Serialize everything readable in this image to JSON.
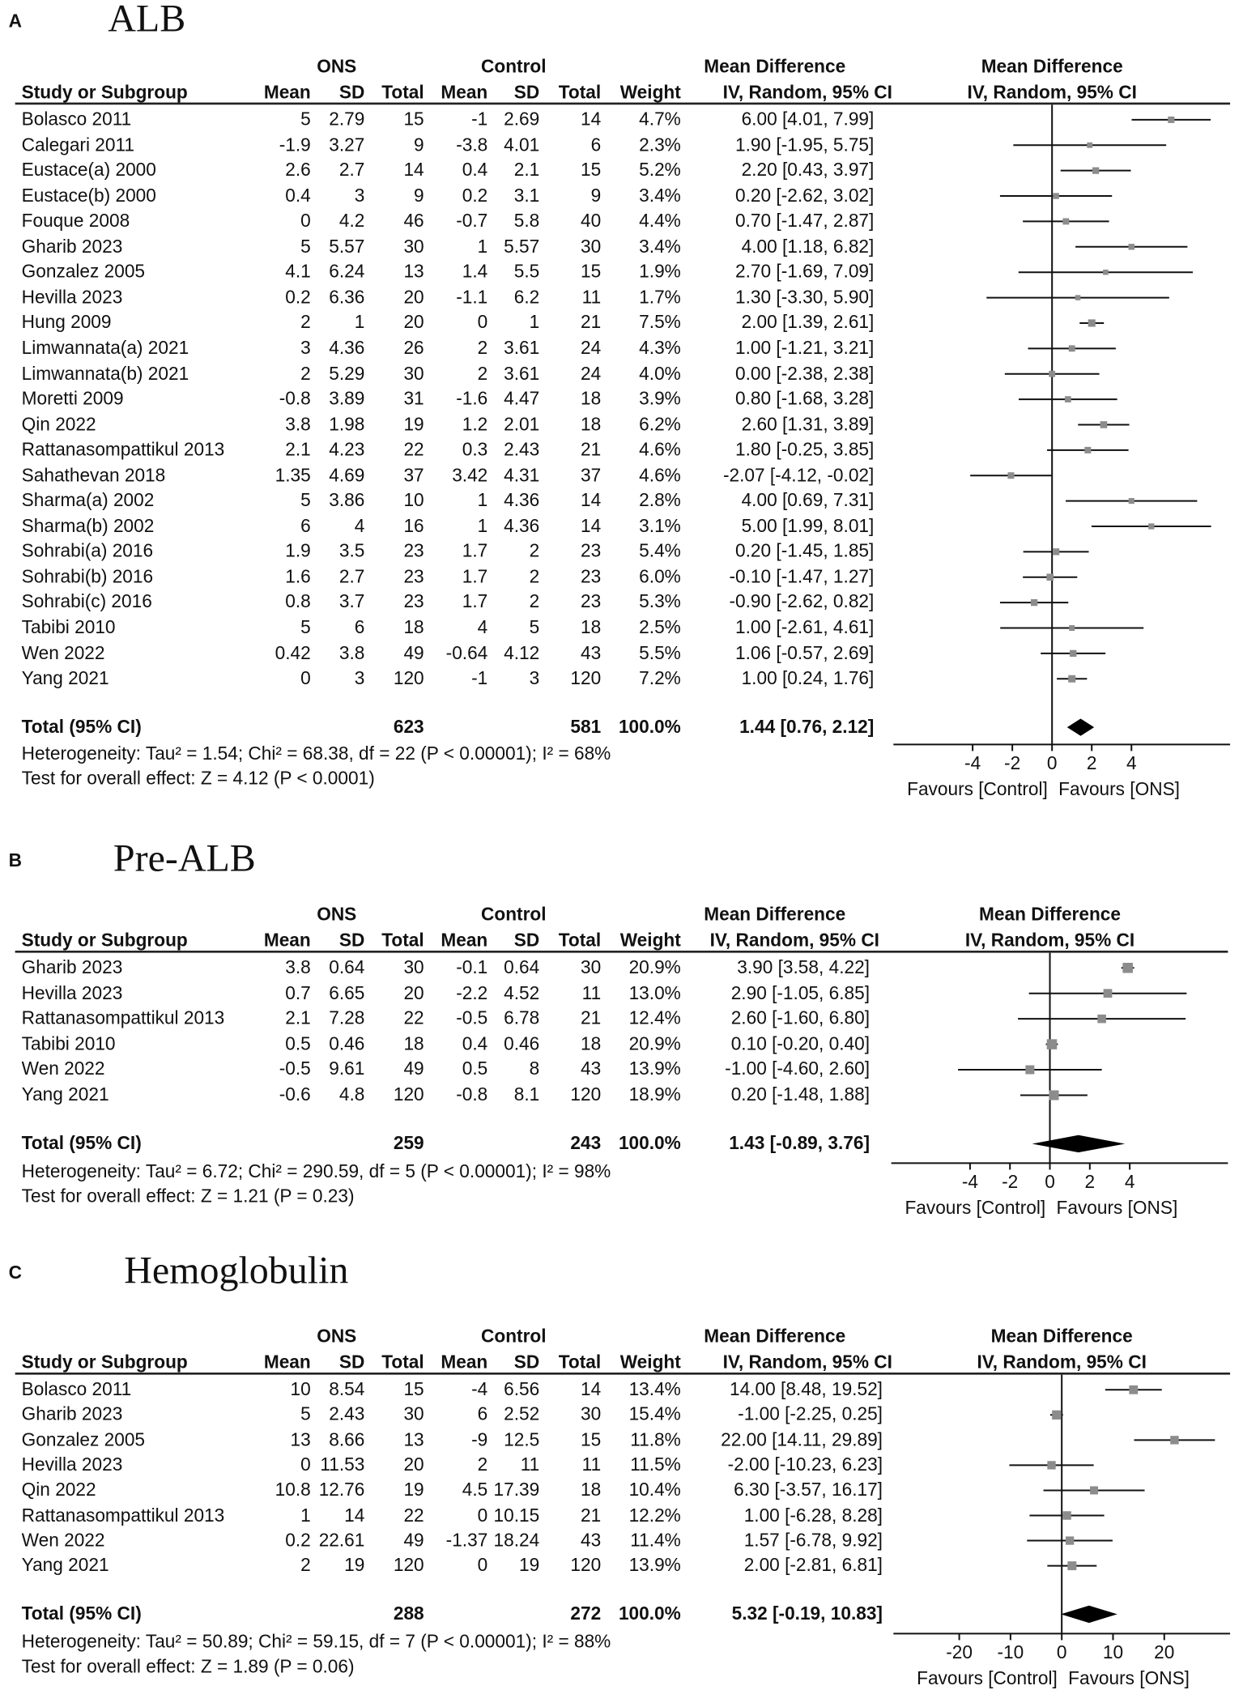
{
  "chart_data": [
    {
      "type": "forest",
      "panel": "A",
      "title": "ALB",
      "group_headers": [
        "ONS",
        "Control",
        "Mean Difference",
        "Mean Difference"
      ],
      "columns": [
        "Study or Subgroup",
        "Mean",
        "SD",
        "Total",
        "Mean",
        "SD",
        "Total",
        "Weight",
        "IV, Random, 95% CI",
        "IV, Random, 95% CI"
      ],
      "rows": [
        [
          "Bolasco 2011",
          "5",
          "2.79",
          "15",
          "-1",
          "2.69",
          "14",
          "4.7%",
          "6.00 [4.01, 7.99]"
        ],
        [
          "Calegari 2011",
          "-1.9",
          "3.27",
          "9",
          "-3.8",
          "4.01",
          "6",
          "2.3%",
          "1.90 [-1.95, 5.75]"
        ],
        [
          "Eustace(a) 2000",
          "2.6",
          "2.7",
          "14",
          "0.4",
          "2.1",
          "15",
          "5.2%",
          "2.20 [0.43, 3.97]"
        ],
        [
          "Eustace(b) 2000",
          "0.4",
          "3",
          "9",
          "0.2",
          "3.1",
          "9",
          "3.4%",
          "0.20 [-2.62, 3.02]"
        ],
        [
          "Fouque 2008",
          "0",
          "4.2",
          "46",
          "-0.7",
          "5.8",
          "40",
          "4.4%",
          "0.70 [-1.47, 2.87]"
        ],
        [
          "Gharib 2023",
          "5",
          "5.57",
          "30",
          "1",
          "5.57",
          "30",
          "3.4%",
          "4.00 [1.18, 6.82]"
        ],
        [
          "Gonzalez 2005",
          "4.1",
          "6.24",
          "13",
          "1.4",
          "5.5",
          "15",
          "1.9%",
          "2.70 [-1.69, 7.09]"
        ],
        [
          "Hevilla 2023",
          "0.2",
          "6.36",
          "20",
          "-1.1",
          "6.2",
          "11",
          "1.7%",
          "1.30 [-3.30, 5.90]"
        ],
        [
          "Hung 2009",
          "2",
          "1",
          "20",
          "0",
          "1",
          "21",
          "7.5%",
          "2.00 [1.39, 2.61]"
        ],
        [
          "Limwannata(a) 2021",
          "3",
          "4.36",
          "26",
          "2",
          "3.61",
          "24",
          "4.3%",
          "1.00 [-1.21, 3.21]"
        ],
        [
          "Limwannata(b) 2021",
          "2",
          "5.29",
          "30",
          "2",
          "3.61",
          "24",
          "4.0%",
          "0.00 [-2.38, 2.38]"
        ],
        [
          "Moretti 2009",
          "-0.8",
          "3.89",
          "31",
          "-1.6",
          "4.47",
          "18",
          "3.9%",
          "0.80 [-1.68, 3.28]"
        ],
        [
          "Qin 2022",
          "3.8",
          "1.98",
          "19",
          "1.2",
          "2.01",
          "18",
          "6.2%",
          "2.60 [1.31, 3.89]"
        ],
        [
          "Rattanasompattikul 2013",
          "2.1",
          "4.23",
          "22",
          "0.3",
          "2.43",
          "21",
          "4.6%",
          "1.80 [-0.25, 3.85]"
        ],
        [
          "Sahathevan 2018",
          "1.35",
          "4.69",
          "37",
          "3.42",
          "4.31",
          "37",
          "4.6%",
          "-2.07 [-4.12, -0.02]"
        ],
        [
          "Sharma(a) 2002",
          "5",
          "3.86",
          "10",
          "1",
          "4.36",
          "14",
          "2.8%",
          "4.00 [0.69, 7.31]"
        ],
        [
          "Sharma(b) 2002",
          "6",
          "4",
          "16",
          "1",
          "4.36",
          "14",
          "3.1%",
          "5.00 [1.99, 8.01]"
        ],
        [
          "Sohrabi(a) 2016",
          "1.9",
          "3.5",
          "23",
          "1.7",
          "2",
          "23",
          "5.4%",
          "0.20 [-1.45, 1.85]"
        ],
        [
          "Sohrabi(b) 2016",
          "1.6",
          "2.7",
          "23",
          "1.7",
          "2",
          "23",
          "6.0%",
          "-0.10 [-1.47, 1.27]"
        ],
        [
          "Sohrabi(c) 2016",
          "0.8",
          "3.7",
          "23",
          "1.7",
          "2",
          "23",
          "5.3%",
          "-0.90 [-2.62, 0.82]"
        ],
        [
          "Tabibi 2010",
          "5",
          "6",
          "18",
          "4",
          "5",
          "18",
          "2.5%",
          "1.00 [-2.61, 4.61]"
        ],
        [
          "Wen 2022",
          "0.42",
          "3.8",
          "49",
          "-0.64",
          "4.12",
          "43",
          "5.5%",
          "1.06 [-0.57, 2.69]"
        ],
        [
          "Yang 2021",
          "0",
          "3",
          "120",
          "-1",
          "3",
          "120",
          "7.2%",
          "1.00 [0.24, 1.76]"
        ]
      ],
      "total": [
        "Total (95% CI)",
        "623",
        "581",
        "100.0%",
        "1.44 [0.76, 2.12]"
      ],
      "heterogeneity": "Heterogeneity: Tau² = 1.54; Chi² = 68.38, df = 22 (P < 0.00001); I² = 68%",
      "overall": "Test for overall effect: Z = 4.12 (P < 0.0001)",
      "ticks": [
        -4,
        -2,
        0,
        2,
        4
      ],
      "favours": [
        "Favours [Control]",
        "Favours [ONS]"
      ]
    },
    {
      "type": "forest",
      "panel": "B",
      "title": "Pre-ALB",
      "group_headers": [
        "ONS",
        "Control",
        "Mean Difference",
        "Mean Difference"
      ],
      "columns": [
        "Study or Subgroup",
        "Mean",
        "SD",
        "Total",
        "Mean",
        "SD",
        "Total",
        "Weight",
        "IV, Random, 95% CI",
        "IV, Random, 95% CI"
      ],
      "rows": [
        [
          "Gharib 2023",
          "3.8",
          "0.64",
          "30",
          "-0.1",
          "0.64",
          "30",
          "20.9%",
          "3.90 [3.58, 4.22]"
        ],
        [
          "Hevilla 2023",
          "0.7",
          "6.65",
          "20",
          "-2.2",
          "4.52",
          "11",
          "13.0%",
          "2.90 [-1.05, 6.85]"
        ],
        [
          "Rattanasompattikul 2013",
          "2.1",
          "7.28",
          "22",
          "-0.5",
          "6.78",
          "21",
          "12.4%",
          "2.60 [-1.60, 6.80]"
        ],
        [
          "Tabibi 2010",
          "0.5",
          "0.46",
          "18",
          "0.4",
          "0.46",
          "18",
          "20.9%",
          "0.10 [-0.20, 0.40]"
        ],
        [
          "Wen 2022",
          "-0.5",
          "9.61",
          "49",
          "0.5",
          "8",
          "43",
          "13.9%",
          "-1.00 [-4.60, 2.60]"
        ],
        [
          "Yang 2021",
          "-0.6",
          "4.8",
          "120",
          "-0.8",
          "8.1",
          "120",
          "18.9%",
          "0.20 [-1.48, 1.88]"
        ]
      ],
      "total": [
        "Total (95% CI)",
        "259",
        "243",
        "100.0%",
        "1.43 [-0.89, 3.76]"
      ],
      "heterogeneity": "Heterogeneity: Tau² = 6.72; Chi² = 290.59, df = 5 (P < 0.00001); I² = 98%",
      "overall": "Test for overall effect: Z = 1.21 (P = 0.23)",
      "ticks": [
        -4,
        -2,
        0,
        2,
        4
      ],
      "favours": [
        "Favours [Control]",
        "Favours [ONS]"
      ]
    },
    {
      "type": "forest",
      "panel": "C",
      "title": "Hemoglobulin",
      "group_headers": [
        "ONS",
        "Control",
        "Mean Difference",
        "Mean Difference"
      ],
      "columns": [
        "Study or Subgroup",
        "Mean",
        "SD",
        "Total",
        "Mean",
        "SD",
        "Total",
        "Weight",
        "IV, Random, 95% CI",
        "IV, Random, 95% CI"
      ],
      "rows": [
        [
          "Bolasco 2011",
          "10",
          "8.54",
          "15",
          "-4",
          "6.56",
          "14",
          "13.4%",
          "14.00 [8.48, 19.52]"
        ],
        [
          "Gharib 2023",
          "5",
          "2.43",
          "30",
          "6",
          "2.52",
          "30",
          "15.4%",
          "-1.00 [-2.25, 0.25]"
        ],
        [
          "Gonzalez 2005",
          "13",
          "8.66",
          "13",
          "-9",
          "12.5",
          "15",
          "11.8%",
          "22.00 [14.11, 29.89]"
        ],
        [
          "Hevilla 2023",
          "0",
          "11.53",
          "20",
          "2",
          "11",
          "11",
          "11.5%",
          "-2.00 [-10.23, 6.23]"
        ],
        [
          "Qin 2022",
          "10.8",
          "12.76",
          "19",
          "4.5",
          "17.39",
          "18",
          "10.4%",
          "6.30 [-3.57, 16.17]"
        ],
        [
          "Rattanasompattikul 2013",
          "1",
          "14",
          "22",
          "0",
          "10.15",
          "21",
          "12.2%",
          "1.00 [-6.28, 8.28]"
        ],
        [
          "Wen 2022",
          "0.2",
          "22.61",
          "49",
          "-1.37",
          "18.24",
          "43",
          "11.4%",
          "1.57 [-6.78, 9.92]"
        ],
        [
          "Yang 2021",
          "2",
          "19",
          "120",
          "0",
          "19",
          "120",
          "13.9%",
          "2.00 [-2.81, 6.81]"
        ]
      ],
      "total": [
        "Total (95% CI)",
        "288",
        "272",
        "100.0%",
        "5.32 [-0.19, 10.83]"
      ],
      "heterogeneity": "Heterogeneity: Tau² = 50.89; Chi² = 59.15, df = 7 (P < 0.00001); I² = 88%",
      "overall": "Test for overall effect: Z = 1.89 (P = 0.06)",
      "ticks": [
        -20,
        -10,
        0,
        10,
        20
      ],
      "favours": [
        "Favours [Control]",
        "Favours [ONS]"
      ]
    }
  ],
  "colors": {
    "marker": "#8c8c8c",
    "line": "#111111",
    "diamond": "#000000"
  }
}
